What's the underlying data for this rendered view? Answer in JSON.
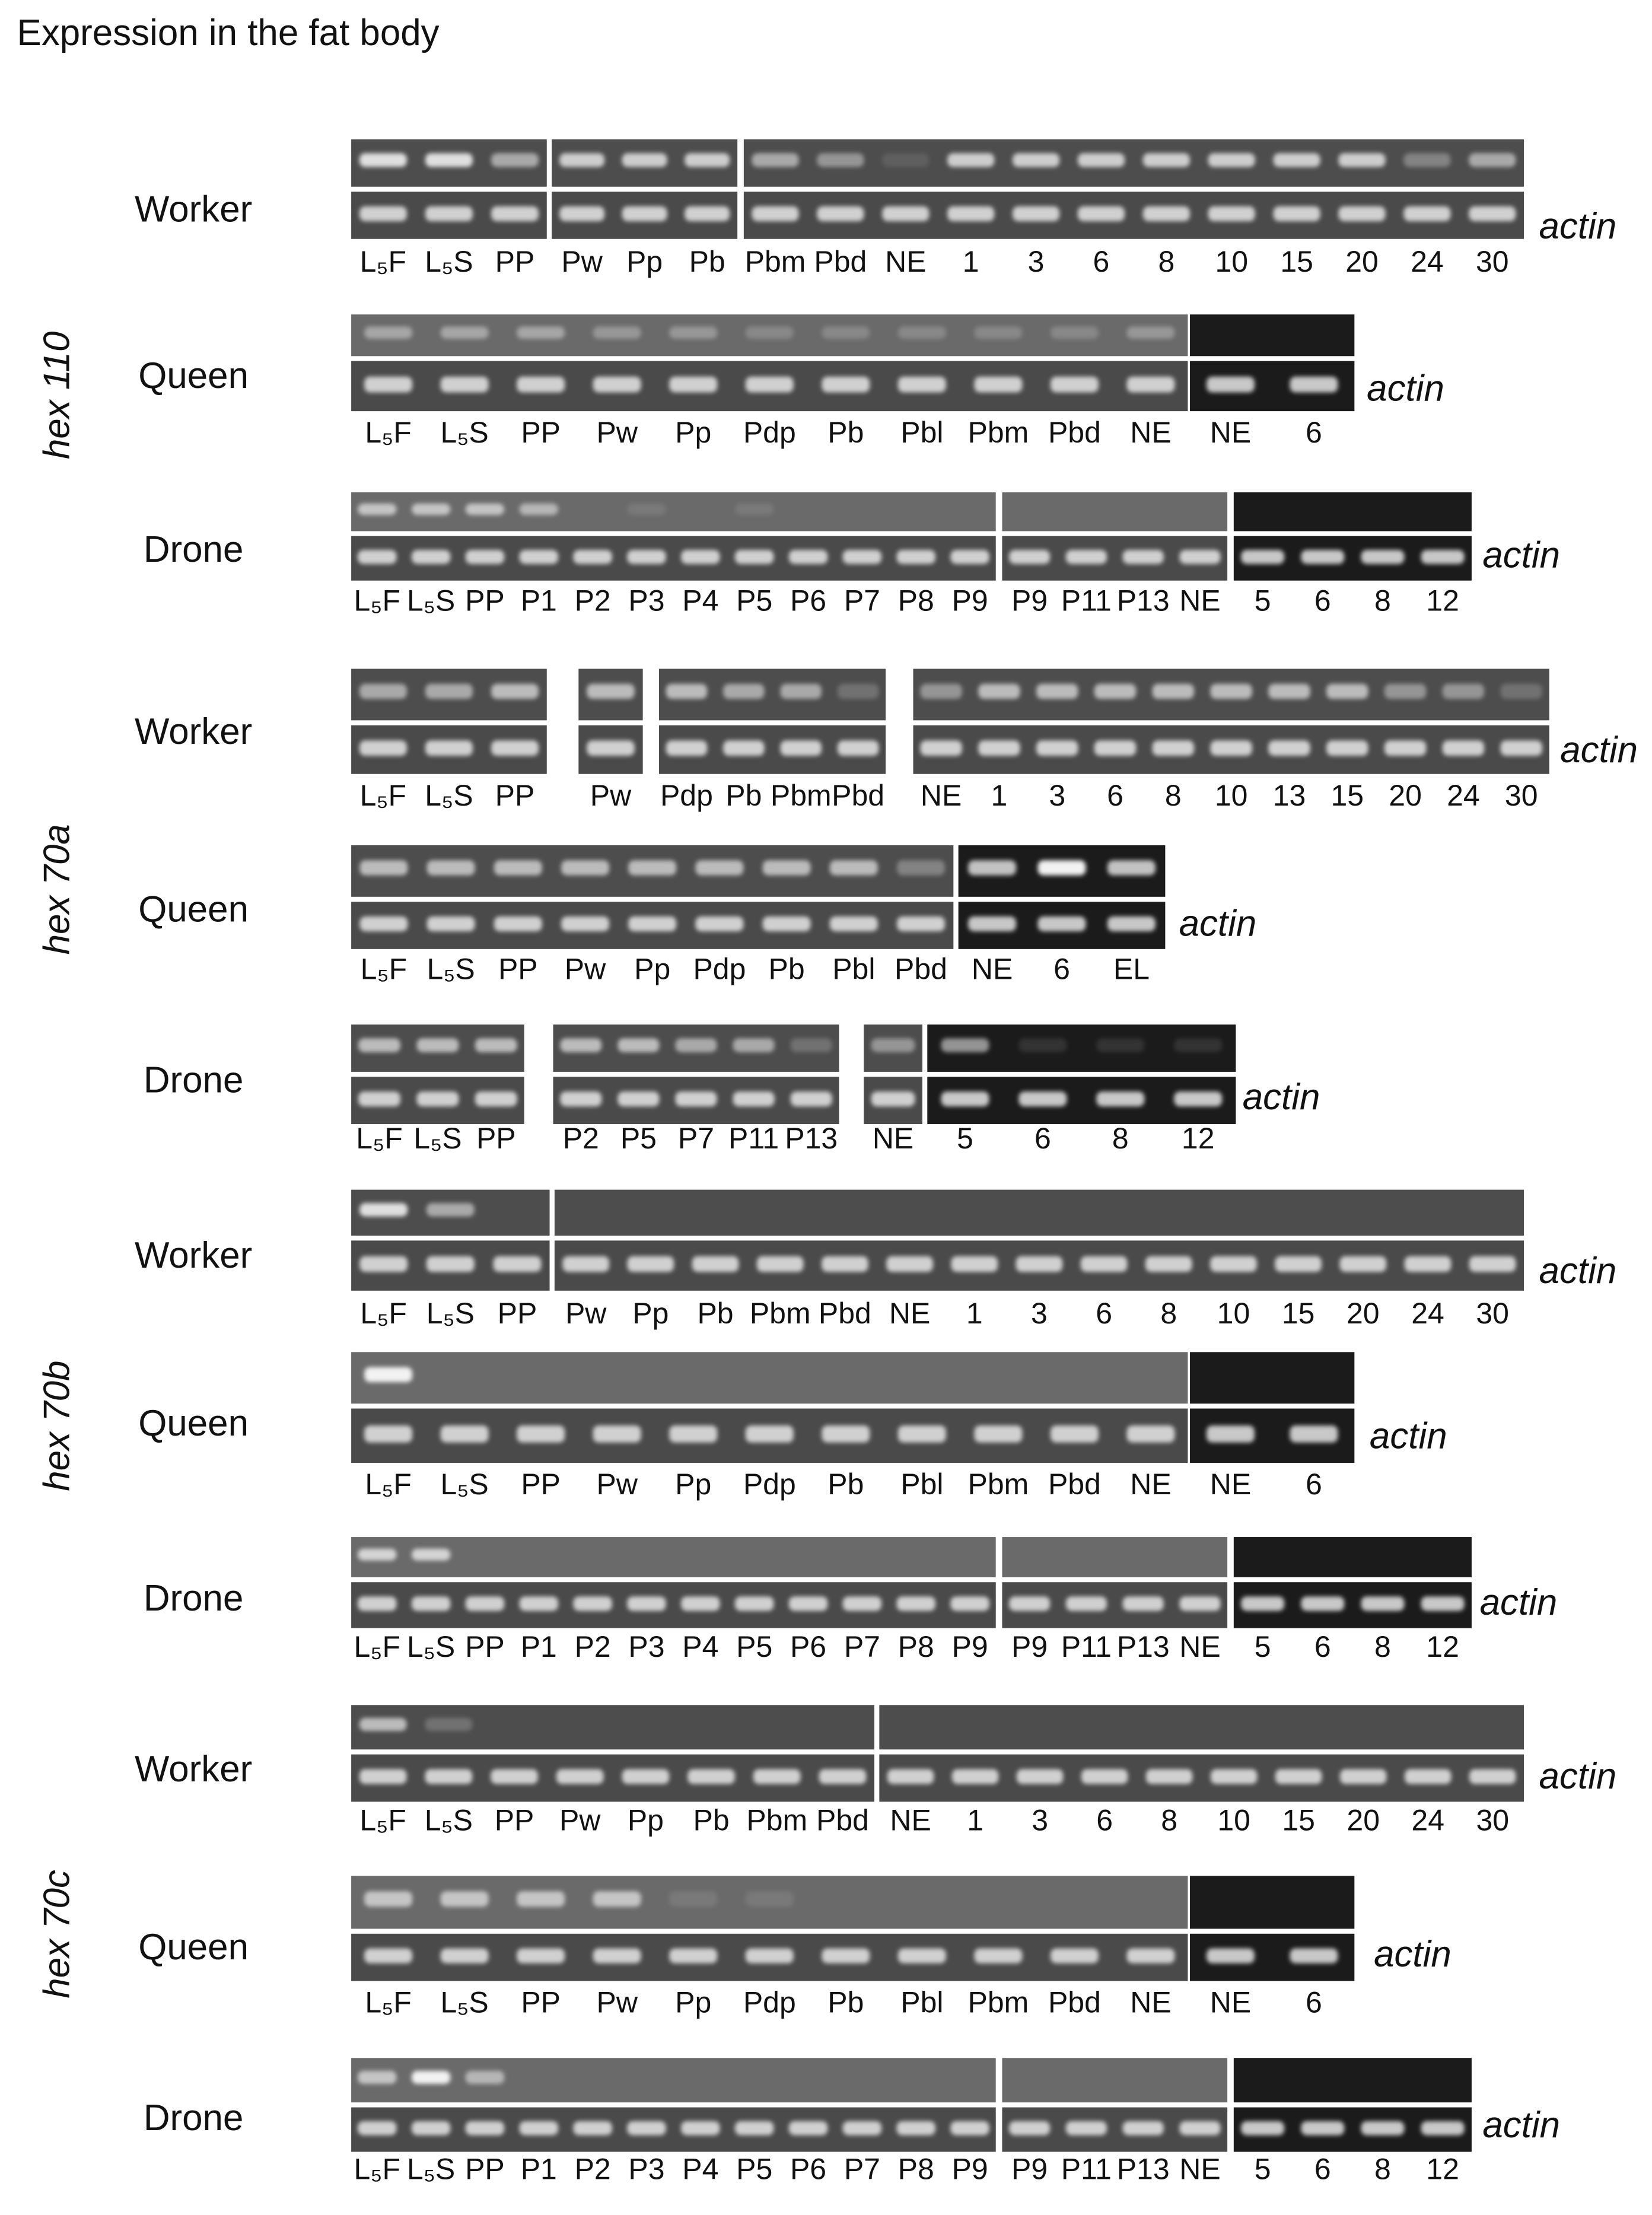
{
  "title": "Expression in the fat body",
  "genes": [
    {
      "label": "hex 110",
      "castes": [
        {
          "name": "Worker",
          "control": "actin",
          "lanes": [
            "L₅F",
            "L₅S",
            "PP",
            "Pw",
            "Pp",
            "Pb",
            "Pbm",
            "Pbd",
            "NE",
            "1",
            "3",
            "6",
            "8",
            "10",
            "15",
            "20",
            "24",
            "30"
          ]
        },
        {
          "name": "Queen",
          "control": "actin",
          "lanes": [
            "L₅F",
            "L₅S",
            "PP",
            "Pw",
            "Pp",
            "Pdp",
            "Pb",
            "Pbl",
            "Pbm",
            "Pbd",
            "NE",
            "NE",
            "6"
          ]
        },
        {
          "name": "Drone",
          "control": "actin",
          "lanes": [
            "L₅F",
            "L₅S",
            "PP",
            "P1",
            "P2",
            "P3",
            "P4",
            "P5",
            "P6",
            "P7",
            "P8",
            "P9",
            "P9",
            "P11",
            "P13",
            "NE",
            "5",
            "6",
            "8",
            "12"
          ]
        }
      ]
    },
    {
      "label": "hex 70a",
      "castes": [
        {
          "name": "Worker",
          "control": "actin",
          "lanes": [
            "L₅F",
            "L₅S",
            "PP",
            "Pw",
            "Pdp",
            "Pb",
            "Pbm",
            "Pbd",
            "NE",
            "1",
            "3",
            "6",
            "8",
            "10",
            "13",
            "15",
            "20",
            "24",
            "30"
          ]
        },
        {
          "name": "Queen",
          "control": "actin",
          "lanes": [
            "L₅F",
            "L₅S",
            "PP",
            "Pw",
            "Pp",
            "Pdp",
            "Pb",
            "Pbl",
            "Pbd",
            "NE",
            "6",
            "EL"
          ]
        },
        {
          "name": "Drone",
          "control": "actin",
          "lanes": [
            "L₅F",
            "L₅S",
            "PP",
            "P2",
            "P5",
            "P7",
            "P11",
            "P13",
            "NE",
            "5",
            "6",
            "8",
            "12"
          ]
        }
      ]
    },
    {
      "label": "hex 70b",
      "castes": [
        {
          "name": "Worker",
          "control": "actin",
          "lanes": [
            "L₅F",
            "L₅S",
            "PP",
            "Pw",
            "Pp",
            "Pb",
            "Pbm",
            "Pbd",
            "NE",
            "1",
            "3",
            "6",
            "8",
            "10",
            "15",
            "20",
            "24",
            "30"
          ]
        },
        {
          "name": "Queen",
          "control": "actin",
          "lanes": [
            "L₅F",
            "L₅S",
            "PP",
            "Pw",
            "Pp",
            "Pdp",
            "Pb",
            "Pbl",
            "Pbm",
            "Pbd",
            "NE",
            "NE",
            "6"
          ]
        },
        {
          "name": "Drone",
          "control": "actin",
          "lanes": [
            "L₅F",
            "L₅S",
            "PP",
            "P1",
            "P2",
            "P3",
            "P4",
            "P5",
            "P6",
            "P7",
            "P8",
            "P9",
            "P9",
            "P11",
            "P13",
            "NE",
            "5",
            "6",
            "8",
            "12"
          ]
        }
      ]
    },
    {
      "label": "hex 70c",
      "castes": [
        {
          "name": "Worker",
          "control": "actin",
          "lanes": [
            "L₅F",
            "L₅S",
            "PP",
            "Pw",
            "Pp",
            "Pb",
            "Pbm",
            "Pbd",
            "NE",
            "1",
            "3",
            "6",
            "8",
            "10",
            "15",
            "20",
            "24",
            "30"
          ]
        },
        {
          "name": "Queen",
          "control": "actin",
          "lanes": [
            "L₅F",
            "L₅S",
            "PP",
            "Pw",
            "Pp",
            "Pdp",
            "Pb",
            "Pbl",
            "Pbm",
            "Pbd",
            "NE",
            "NE",
            "6"
          ]
        },
        {
          "name": "Drone",
          "control": "actin",
          "lanes": [
            "L₅F",
            "L₅S",
            "PP",
            "P1",
            "P2",
            "P3",
            "P4",
            "P5",
            "P6",
            "P7",
            "P8",
            "P9",
            "P9",
            "P11",
            "P13",
            "NE",
            "5",
            "6",
            "8",
            "12"
          ]
        }
      ]
    }
  ]
}
